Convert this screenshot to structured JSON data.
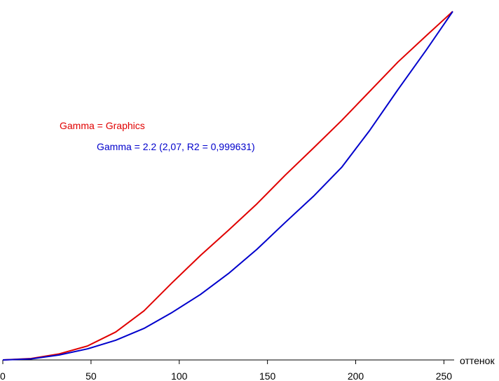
{
  "chart_data": {
    "type": "line",
    "title": "",
    "xlabel": "оттенок",
    "ylabel": "",
    "xlim": [
      0,
      255
    ],
    "ylim": [
      0,
      1
    ],
    "x_ticks": [
      0,
      50,
      100,
      150,
      200,
      250
    ],
    "grid": false,
    "legend_position": "upper-left",
    "series": [
      {
        "name": "Gamma = Graphics",
        "color": "#e00000",
        "x": [
          0,
          16,
          32,
          48,
          64,
          80,
          96,
          112,
          128,
          144,
          160,
          176,
          192,
          208,
          224,
          240,
          255
        ],
        "y": [
          0.0,
          0.004,
          0.017,
          0.039,
          0.078,
          0.137,
          0.216,
          0.292,
          0.363,
          0.436,
          0.516,
          0.592,
          0.669,
          0.751,
          0.833,
          0.906,
          0.974
        ]
      },
      {
        "name": "Gamma = 2.2 (2,07, R2 = 0,999631)",
        "color": "#0000cc",
        "x": [
          0,
          16,
          32,
          48,
          64,
          80,
          96,
          112,
          128,
          144,
          160,
          176,
          192,
          208,
          224,
          240,
          255
        ],
        "y": [
          0.0,
          0.003,
          0.014,
          0.031,
          0.055,
          0.088,
          0.133,
          0.183,
          0.242,
          0.309,
          0.384,
          0.457,
          0.538,
          0.642,
          0.756,
          0.866,
          0.974
        ]
      }
    ]
  }
}
